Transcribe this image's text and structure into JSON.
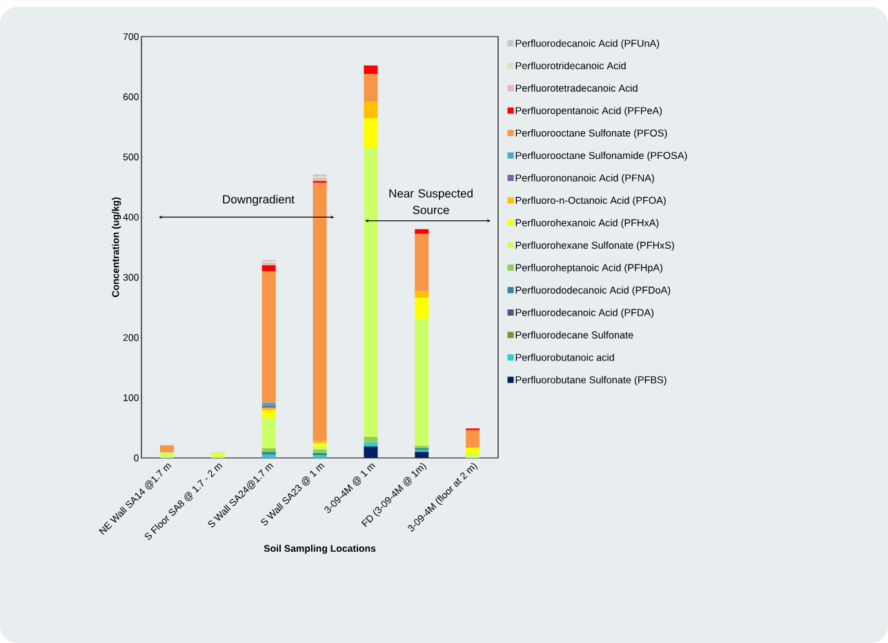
{
  "chart_data": {
    "type": "bar",
    "stacked": true,
    "xlabel": "Soil Sampling Locations",
    "ylabel": "Concentration (ug/kg)",
    "categories": [
      "NE Wall SA14 @1.7 m",
      "S Floor SA8 @ 1.7 - 2 m",
      "S Wall SA24@1.7 m",
      "S Wall SA23 @ 1 m",
      "3-09-4M @ 1 m",
      "FD (3-09-4M @ 1m)",
      "3-09-4M (floor at 2 m)"
    ],
    "ylim": [
      0,
      700
    ],
    "yticks": [
      0,
      100,
      200,
      300,
      400,
      500,
      600,
      700
    ],
    "legend": "right",
    "grid": false,
    "annotations": [
      "Downgradient",
      "Near Suspected Source"
    ],
    "series": [
      {
        "name": "Perfluorobutane Sulfonate (PFBS)",
        "color": "#002060",
        "values": [
          0,
          0,
          0,
          0,
          19,
          10,
          0
        ]
      },
      {
        "name": "Perfluorobutanoic acid",
        "color": "#33cccc",
        "values": [
          0,
          0,
          5,
          4,
          7,
          3,
          0
        ]
      },
      {
        "name": "Perfluorodecane Sulfonate",
        "color": "#77933c",
        "values": [
          0,
          0,
          0,
          0,
          0,
          0,
          0
        ]
      },
      {
        "name": "Perfluorodecanoic Acid (PFDA)",
        "color": "#604a7b",
        "values": [
          0,
          0,
          0,
          0,
          0,
          0,
          0
        ]
      },
      {
        "name": "Perfluorododecanoic Acid (PFDoA)",
        "color": "#31859c",
        "values": [
          0,
          0,
          5,
          4,
          0,
          3,
          0
        ]
      },
      {
        "name": "Perfluoroheptanoic Acid (PFHpA)",
        "color": "#92d050",
        "values": [
          0,
          0,
          6,
          6,
          9,
          4,
          0
        ]
      },
      {
        "name": "Perfluorohexane Sulfonate (PFHxS)",
        "color": "#ccff66",
        "values": [
          9,
          4,
          51,
          6,
          481,
          211,
          8
        ]
      },
      {
        "name": "Perfluorohexanoic Acid (PFHxA)",
        "color": "#ffff00",
        "values": [
          0,
          3,
          12,
          4,
          48,
          35,
          9
        ]
      },
      {
        "name": "Perfluoro-n-Octanoic Acid (PFOA)",
        "color": "#ffc000",
        "values": [
          0,
          0,
          4,
          4,
          28,
          11,
          0
        ]
      },
      {
        "name": "Perfluorononanoic Acid (PFNA)",
        "color": "#8064a2",
        "values": [
          0,
          0,
          4,
          0,
          0,
          0,
          0
        ]
      },
      {
        "name": "Perfluorooctane Sulfonamide (PFOSA)",
        "color": "#4bacc6",
        "values": [
          0,
          0,
          5,
          0,
          0,
          0,
          0
        ]
      },
      {
        "name": "Perfluorooctane Sulfonate (PFOS)",
        "color": "#f79646",
        "values": [
          12,
          0,
          218,
          429,
          46,
          95,
          29
        ]
      },
      {
        "name": "Perfluoropentanoic Acid (PFPeA)",
        "color": "#ff0000",
        "values": [
          0,
          0,
          10,
          3,
          14,
          8,
          3
        ]
      },
      {
        "name": "Perfluorotetradecanoic Acid",
        "color": "#e6b9b8",
        "values": [
          0,
          0,
          4,
          5,
          0,
          0,
          0
        ]
      },
      {
        "name": "Perfluorotridecanoic Acid",
        "color": "#d7e4bd",
        "values": [
          0,
          3,
          3,
          3,
          0,
          0,
          0
        ]
      },
      {
        "name": "Perfluorodecanoic Acid (PFUnA)",
        "color": "#ccc0da",
        "values": [
          0,
          0,
          2,
          3,
          0,
          0,
          0
        ]
      }
    ]
  }
}
